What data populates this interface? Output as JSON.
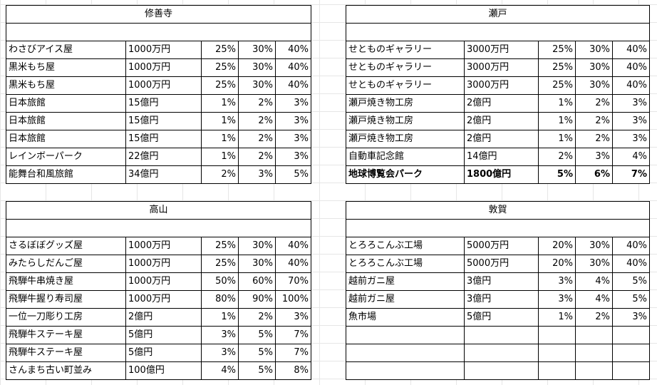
{
  "tables": [
    {
      "id": "shuzenji",
      "title": "修善寺",
      "rows": [
        [
          "わさびアイス屋",
          "1000万円",
          "25%",
          "30%",
          "40%"
        ],
        [
          "黒米もち屋",
          "1000万円",
          "25%",
          "30%",
          "40%"
        ],
        [
          "黒米もち屋",
          "1000万円",
          "25%",
          "30%",
          "40%"
        ],
        [
          "日本旅館",
          "15億円",
          "1%",
          "2%",
          "3%"
        ],
        [
          "日本旅館",
          "15億円",
          "1%",
          "2%",
          "3%"
        ],
        [
          "日本旅館",
          "15億円",
          "1%",
          "2%",
          "3%"
        ],
        [
          "レインボーパーク",
          "22億円",
          "1%",
          "2%",
          "3%"
        ],
        [
          "能舞台和風旅館",
          "34億円",
          "2%",
          "3%",
          "5%"
        ]
      ]
    },
    {
      "id": "seto",
      "title": "瀬戸",
      "rows": [
        [
          "せとものギャラリー",
          "3000万円",
          "25%",
          "30%",
          "40%"
        ],
        [
          "せとものギャラリー",
          "3000万円",
          "25%",
          "30%",
          "40%"
        ],
        [
          "せとものギャラリー",
          "3000万円",
          "25%",
          "30%",
          "40%"
        ],
        [
          "瀬戸焼き物工房",
          "2億円",
          "1%",
          "2%",
          "3%"
        ],
        [
          "瀬戸焼き物工房",
          "2億円",
          "1%",
          "2%",
          "3%"
        ],
        [
          "瀬戸焼き物工房",
          "2億円",
          "1%",
          "2%",
          "3%"
        ],
        [
          "自動車記念館",
          "14億円",
          "2%",
          "3%",
          "4%"
        ],
        [
          "地球博覧会パーク",
          "1800億円",
          "5%",
          "6%",
          "7%"
        ]
      ],
      "bold_row": 7
    },
    {
      "id": "takayama",
      "title": "高山",
      "rows": [
        [
          "さるぼぼグッズ屋",
          "1000万円",
          "25%",
          "30%",
          "40%"
        ],
        [
          "みたらしだんご屋",
          "1000万円",
          "25%",
          "30%",
          "40%"
        ],
        [
          "飛騨牛串焼き屋",
          "1000万円",
          "50%",
          "60%",
          "70%"
        ],
        [
          "飛騨牛握り寿司屋",
          "1000万円",
          "80%",
          "90%",
          "100%"
        ],
        [
          "一位一刀彫り工房",
          "2億円",
          "1%",
          "2%",
          "3%"
        ],
        [
          "飛騨牛ステーキ屋",
          "5億円",
          "3%",
          "5%",
          "7%"
        ],
        [
          "飛騨牛ステーキ屋",
          "5億円",
          "3%",
          "5%",
          "7%"
        ],
        [
          "さんまち古い町並み",
          "100億円",
          "4%",
          "5%",
          "8%"
        ]
      ]
    },
    {
      "id": "tsuruga",
      "title": "敦賀",
      "rows": [
        [
          "とろろこんぶ工場",
          "5000万円",
          "20%",
          "30%",
          "40%"
        ],
        [
          "とろろこんぶ工場",
          "5000万円",
          "20%",
          "30%",
          "40%"
        ],
        [
          "越前ガニ屋",
          "3億円",
          "3%",
          "4%",
          "5%"
        ],
        [
          "越前ガニ屋",
          "3億円",
          "3%",
          "4%",
          "5%"
        ],
        [
          "魚市場",
          "5億円",
          "1%",
          "2%",
          "3%"
        ],
        [
          "",
          "",
          "",
          "",
          ""
        ],
        [
          "",
          "",
          "",
          "",
          ""
        ],
        [
          "",
          "",
          "",
          "",
          ""
        ]
      ]
    }
  ]
}
